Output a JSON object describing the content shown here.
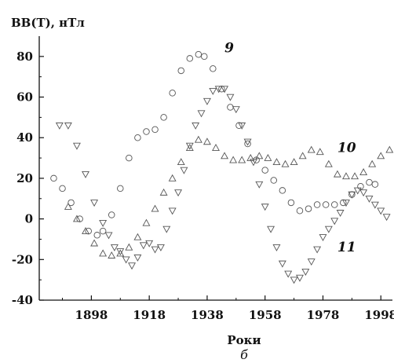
{
  "chart_data": {
    "type": "scatter",
    "ylabel": "BB(T), нТл",
    "xlabel": "Роки",
    "panel_label": "б",
    "xlim": [
      1880,
      2002
    ],
    "ylim": [
      -40,
      90
    ],
    "x_ticks": [
      1898,
      1918,
      1938,
      1958,
      1978,
      1998
    ],
    "x_tick_labels": [
      "1898",
      "1918",
      "1938",
      "1958",
      "1978",
      "1998"
    ],
    "y_ticks": [
      -40,
      -20,
      0,
      20,
      40,
      60,
      80
    ],
    "y_tick_labels": [
      "-40",
      "-20",
      "0",
      "20",
      "40",
      "60",
      "80"
    ],
    "grid": false,
    "series": [
      {
        "name": "9",
        "marker": "circle",
        "points": [
          [
            1885,
            20
          ],
          [
            1888,
            15
          ],
          [
            1891,
            8
          ],
          [
            1894,
            0
          ],
          [
            1897,
            -6
          ],
          [
            1900,
            -8
          ],
          [
            1902,
            -6
          ],
          [
            1905,
            2
          ],
          [
            1908,
            15
          ],
          [
            1911,
            30
          ],
          [
            1914,
            40
          ],
          [
            1917,
            43
          ],
          [
            1920,
            44
          ],
          [
            1923,
            50
          ],
          [
            1926,
            62
          ],
          [
            1929,
            73
          ],
          [
            1932,
            79
          ],
          [
            1935,
            81
          ],
          [
            1937,
            80
          ],
          [
            1940,
            74
          ],
          [
            1943,
            64
          ],
          [
            1946,
            55
          ],
          [
            1949,
            46
          ],
          [
            1952,
            37
          ],
          [
            1955,
            29
          ],
          [
            1958,
            24
          ],
          [
            1961,
            19
          ],
          [
            1964,
            14
          ],
          [
            1967,
            8
          ],
          [
            1970,
            4
          ],
          [
            1973,
            5
          ],
          [
            1976,
            7
          ],
          [
            1979,
            7
          ],
          [
            1982,
            7
          ],
          [
            1985,
            8
          ],
          [
            1988,
            12
          ],
          [
            1991,
            16
          ],
          [
            1994,
            18
          ],
          [
            1996,
            17
          ]
        ]
      },
      {
        "name": "10",
        "marker": "triangle-up",
        "points": [
          [
            1890,
            6
          ],
          [
            1893,
            0
          ],
          [
            1896,
            -6
          ],
          [
            1899,
            -12
          ],
          [
            1902,
            -17
          ],
          [
            1905,
            -18
          ],
          [
            1908,
            -17
          ],
          [
            1911,
            -14
          ],
          [
            1914,
            -9
          ],
          [
            1917,
            -2
          ],
          [
            1920,
            5
          ],
          [
            1923,
            13
          ],
          [
            1926,
            20
          ],
          [
            1929,
            28
          ],
          [
            1932,
            35
          ],
          [
            1935,
            39
          ],
          [
            1938,
            38
          ],
          [
            1941,
            35
          ],
          [
            1944,
            31
          ],
          [
            1947,
            29
          ],
          [
            1950,
            29
          ],
          [
            1953,
            30
          ],
          [
            1956,
            31
          ],
          [
            1959,
            30
          ],
          [
            1962,
            28
          ],
          [
            1965,
            27
          ],
          [
            1968,
            28
          ],
          [
            1971,
            31
          ],
          [
            1974,
            34
          ],
          [
            1977,
            33
          ],
          [
            1980,
            27
          ],
          [
            1983,
            22
          ],
          [
            1986,
            21
          ],
          [
            1989,
            21
          ],
          [
            1992,
            23
          ],
          [
            1995,
            27
          ],
          [
            1998,
            31
          ],
          [
            2001,
            34
          ]
        ]
      },
      {
        "name": "11",
        "marker": "triangle-down",
        "points": [
          [
            1887,
            46
          ],
          [
            1890,
            46
          ],
          [
            1893,
            36
          ],
          [
            1896,
            22
          ],
          [
            1899,
            8
          ],
          [
            1902,
            -2
          ],
          [
            1904,
            -8
          ],
          [
            1906,
            -14
          ],
          [
            1908,
            -16
          ],
          [
            1910,
            -20
          ],
          [
            1912,
            -23
          ],
          [
            1914,
            -19
          ],
          [
            1916,
            -13
          ],
          [
            1918,
            -12
          ],
          [
            1920,
            -15
          ],
          [
            1922,
            -14
          ],
          [
            1924,
            -5
          ],
          [
            1926,
            4
          ],
          [
            1928,
            13
          ],
          [
            1930,
            24
          ],
          [
            1932,
            36
          ],
          [
            1934,
            46
          ],
          [
            1936,
            52
          ],
          [
            1938,
            58
          ],
          [
            1940,
            63
          ],
          [
            1942,
            64
          ],
          [
            1944,
            64
          ],
          [
            1946,
            60
          ],
          [
            1948,
            54
          ],
          [
            1950,
            46
          ],
          [
            1952,
            38
          ],
          [
            1954,
            28
          ],
          [
            1956,
            17
          ],
          [
            1958,
            6
          ],
          [
            1960,
            -5
          ],
          [
            1962,
            -14
          ],
          [
            1964,
            -22
          ],
          [
            1966,
            -27
          ],
          [
            1968,
            -30
          ],
          [
            1970,
            -29
          ],
          [
            1972,
            -26
          ],
          [
            1974,
            -21
          ],
          [
            1976,
            -15
          ],
          [
            1978,
            -9
          ],
          [
            1980,
            -5
          ],
          [
            1982,
            -1
          ],
          [
            1984,
            3
          ],
          [
            1986,
            8
          ],
          [
            1988,
            12
          ],
          [
            1990,
            14
          ],
          [
            1992,
            13
          ],
          [
            1994,
            10
          ],
          [
            1996,
            7
          ],
          [
            1998,
            4
          ],
          [
            2000,
            1
          ]
        ]
      }
    ],
    "series_label_positions": [
      {
        "name": "9",
        "x": 1944,
        "y": 82
      },
      {
        "name": "10",
        "x": 1983,
        "y": 33
      },
      {
        "name": "11",
        "x": 1983,
        "y": -16
      }
    ]
  }
}
